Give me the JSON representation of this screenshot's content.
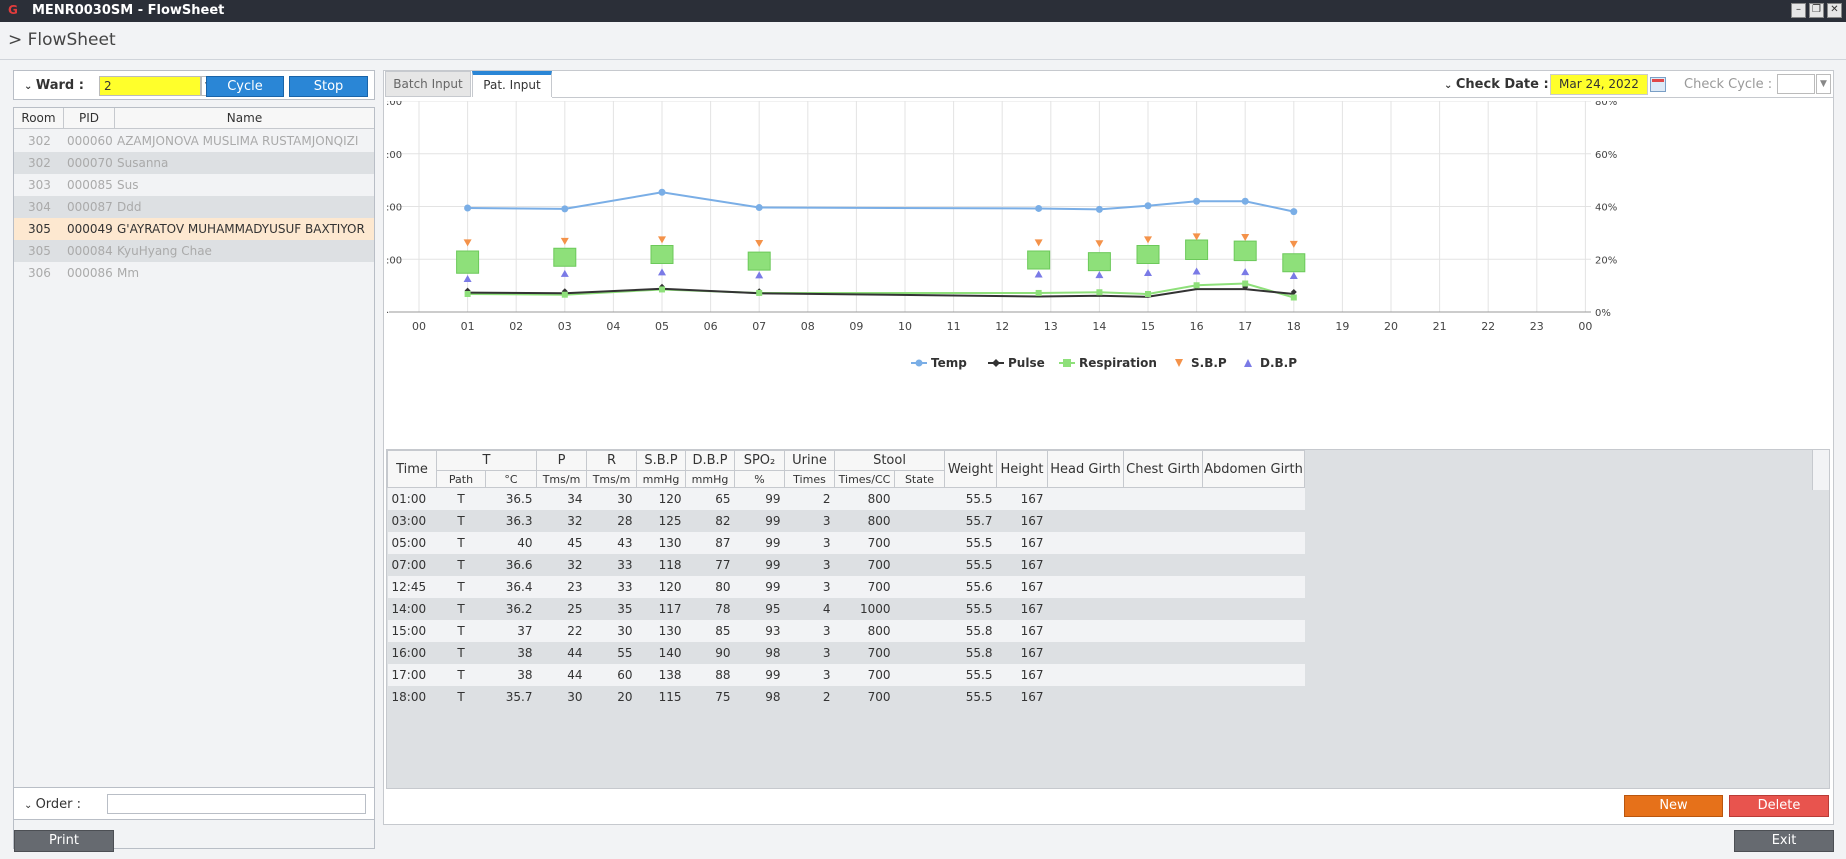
{
  "window": {
    "logo": "G",
    "title": "MENR0030SM - FlowSheet",
    "min": "–",
    "max": "❐",
    "close": "✕"
  },
  "header": {
    "title": "> FlowSheet"
  },
  "ward": {
    "label": "Ward :",
    "value": "2",
    "cycle_label": "Cycle",
    "stop_label": "Stop"
  },
  "patients": {
    "columns": [
      "Room",
      "PID",
      "Name"
    ],
    "rows": [
      {
        "room": "302",
        "pid": "000060",
        "name": "AZAMJONOVA MUSLIMA RUSTAMJONQIZI"
      },
      {
        "room": "302",
        "pid": "000070",
        "name": "Susanna"
      },
      {
        "room": "303",
        "pid": "000085",
        "name": "Sus"
      },
      {
        "room": "304",
        "pid": "000087",
        "name": "Ddd"
      },
      {
        "room": "305",
        "pid": "000049",
        "name": "G'AYRATOV MUHAMMADYUSUF BAXTIYOR"
      },
      {
        "room": "305",
        "pid": "000084",
        "name": "KyuHyang Chae"
      },
      {
        "room": "306",
        "pid": "000086",
        "name": "Mm"
      }
    ],
    "selected_index": 4
  },
  "order": {
    "label": "Order :",
    "value": ""
  },
  "buttons": {
    "print": "Print",
    "new": "New",
    "delete": "Delete",
    "exit": "Exit"
  },
  "tabs": {
    "batch": "Batch Input",
    "pat": "Pat. Input"
  },
  "check": {
    "date_label": "Check Date :",
    "date_value": "Mar 24, 2022",
    "cycle_label": "Check Cycle :",
    "cycle_value": ""
  },
  "colors": {
    "accent": "#2a86d6",
    "highlight": "#ffff2b",
    "temp": "#7aaee6",
    "pulse": "#333333",
    "resp": "#8ee07a",
    "sbp": "#f4924a",
    "dbp": "#7a7ae6"
  },
  "chart_data": {
    "type": "line",
    "x_ticks": [
      "00",
      "01",
      "02",
      "03",
      "04",
      "05",
      "06",
      "07",
      "08",
      "09",
      "10",
      "11",
      "12",
      "13",
      "14",
      "15",
      "16",
      "17",
      "18",
      "19",
      "20",
      "21",
      "22",
      "23",
      "00"
    ],
    "y_left_ticks": [
      ":00",
      ":00",
      ":00",
      ":00",
      "·"
    ],
    "y_right_ticks": [
      "80%",
      "60%",
      "40%",
      "20%",
      "0%"
    ],
    "x": [
      1,
      3,
      5,
      7,
      12.75,
      14,
      15,
      16,
      17,
      18
    ],
    "series": [
      {
        "name": "Temp",
        "marker": "circle",
        "values": [
          36.5,
          36.3,
          40,
          36.6,
          36.4,
          36.2,
          37,
          38,
          38,
          35.7
        ]
      },
      {
        "name": "Pulse",
        "marker": "diamond",
        "values": [
          34,
          32,
          45,
          32,
          23,
          25,
          22,
          44,
          44,
          30
        ]
      },
      {
        "name": "Respiration",
        "marker": "square",
        "values": [
          30,
          28,
          43,
          33,
          33,
          35,
          30,
          55,
          60,
          20
        ]
      },
      {
        "name": "S.B.P",
        "marker": "triangle-down",
        "values": [
          120,
          125,
          130,
          118,
          120,
          117,
          130,
          140,
          138,
          115
        ]
      },
      {
        "name": "D.B.P",
        "marker": "triangle-up",
        "values": [
          65,
          82,
          87,
          77,
          80,
          78,
          85,
          90,
          88,
          75
        ]
      }
    ],
    "legend_position": "bottom",
    "grid": true
  },
  "vitals": {
    "head1": [
      "Time",
      "T",
      "P",
      "R",
      "S.B.P",
      "D.B.P",
      "SPO₂",
      "Urine",
      "Stool",
      "Weight",
      "Height",
      "Head Girth",
      "Chest Girth",
      "Abdomen Girth"
    ],
    "head2": [
      "Path",
      "°C",
      "Tms/m",
      "Tms/m",
      "mmHg",
      "mmHg",
      "%",
      "Times",
      "Times/CC",
      "State"
    ],
    "rows": [
      {
        "time": "01:00",
        "path": "T",
        "temp": "36.5",
        "p": "34",
        "r": "30",
        "sbp": "120",
        "dbp": "65",
        "spo2": "99",
        "urine": "2",
        "stool": "800",
        "state": "",
        "weight": "55.5",
        "height": "167"
      },
      {
        "time": "03:00",
        "path": "T",
        "temp": "36.3",
        "p": "32",
        "r": "28",
        "sbp": "125",
        "dbp": "82",
        "spo2": "99",
        "urine": "3",
        "stool": "800",
        "state": "",
        "weight": "55.7",
        "height": "167"
      },
      {
        "time": "05:00",
        "path": "T",
        "temp": "40",
        "p": "45",
        "r": "43",
        "sbp": "130",
        "dbp": "87",
        "spo2": "99",
        "urine": "3",
        "stool": "700",
        "state": "",
        "weight": "55.5",
        "height": "167"
      },
      {
        "time": "07:00",
        "path": "T",
        "temp": "36.6",
        "p": "32",
        "r": "33",
        "sbp": "118",
        "dbp": "77",
        "spo2": "99",
        "urine": "3",
        "stool": "700",
        "state": "",
        "weight": "55.5",
        "height": "167"
      },
      {
        "time": "12:45",
        "path": "T",
        "temp": "36.4",
        "p": "23",
        "r": "33",
        "sbp": "120",
        "dbp": "80",
        "spo2": "99",
        "urine": "3",
        "stool": "700",
        "state": "",
        "weight": "55.6",
        "height": "167"
      },
      {
        "time": "14:00",
        "path": "T",
        "temp": "36.2",
        "p": "25",
        "r": "35",
        "sbp": "117",
        "dbp": "78",
        "spo2": "95",
        "urine": "4",
        "stool": "1000",
        "state": "",
        "weight": "55.5",
        "height": "167"
      },
      {
        "time": "15:00",
        "path": "T",
        "temp": "37",
        "p": "22",
        "r": "30",
        "sbp": "130",
        "dbp": "85",
        "spo2": "93",
        "urine": "3",
        "stool": "800",
        "state": "",
        "weight": "55.8",
        "height": "167"
      },
      {
        "time": "16:00",
        "path": "T",
        "temp": "38",
        "p": "44",
        "r": "55",
        "sbp": "140",
        "dbp": "90",
        "spo2": "98",
        "urine": "3",
        "stool": "700",
        "state": "",
        "weight": "55.8",
        "height": "167"
      },
      {
        "time": "17:00",
        "path": "T",
        "temp": "38",
        "p": "44",
        "r": "60",
        "sbp": "138",
        "dbp": "88",
        "spo2": "99",
        "urine": "3",
        "stool": "700",
        "state": "",
        "weight": "55.5",
        "height": "167"
      },
      {
        "time": "18:00",
        "path": "T",
        "temp": "35.7",
        "p": "30",
        "r": "20",
        "sbp": "115",
        "dbp": "75",
        "spo2": "98",
        "urine": "2",
        "stool": "700",
        "state": "",
        "weight": "55.5",
        "height": "167"
      }
    ]
  }
}
